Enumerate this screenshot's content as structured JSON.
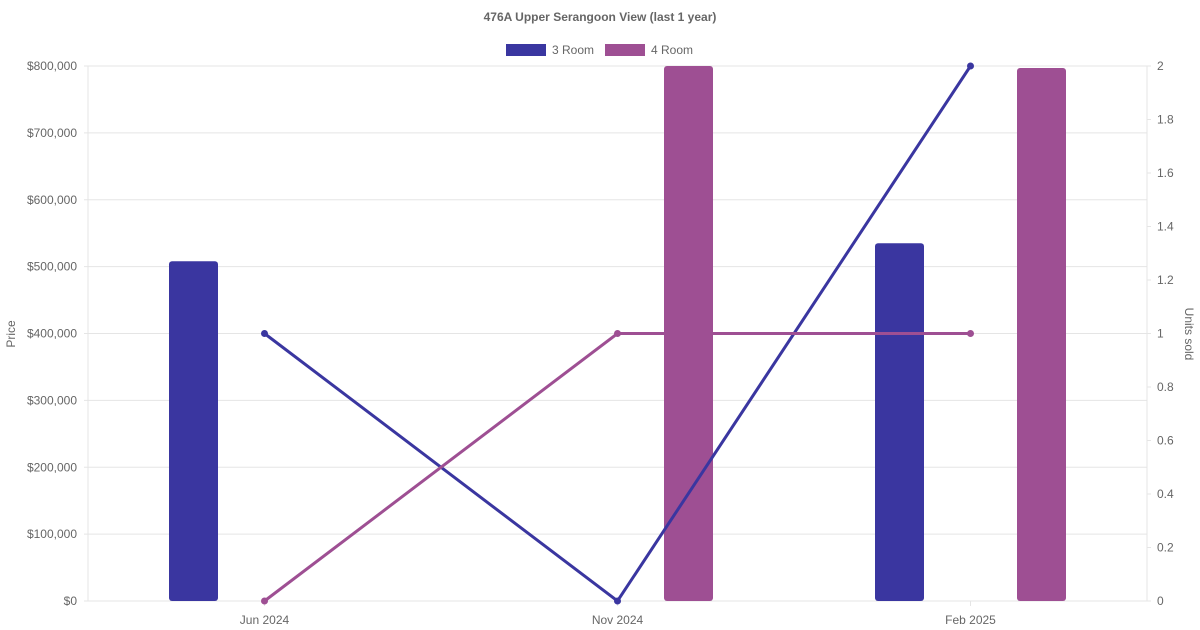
{
  "chart_data": {
    "type": "bar",
    "title": "476A Upper Serangoon View (last 1 year)",
    "categories": [
      "Jun 2024",
      "Nov 2024",
      "Feb 2025"
    ],
    "ylabel": "Price",
    "y2label": "Units sold",
    "ylim": [
      0,
      800000
    ],
    "y2lim": [
      0,
      2
    ],
    "yticks": [
      "$0",
      "$100,000",
      "$200,000",
      "$300,000",
      "$400,000",
      "$500,000",
      "$600,000",
      "$700,000",
      "$800,000"
    ],
    "y2ticks": [
      "0",
      "0.2",
      "0.4",
      "0.6",
      "0.8",
      "1",
      "1.2",
      "1.4",
      "1.6",
      "1.8",
      "2"
    ],
    "legend": {
      "position": "top"
    },
    "grid": true,
    "series": [
      {
        "name": "3 Room",
        "color": "#3a36a0",
        "price": [
          508000,
          null,
          535000
        ],
        "units_sold": [
          1,
          0,
          2
        ]
      },
      {
        "name": "4 Room",
        "color": "#9e4f93",
        "price": [
          null,
          800000,
          797000
        ],
        "units_sold": [
          0,
          1,
          1
        ]
      }
    ]
  }
}
